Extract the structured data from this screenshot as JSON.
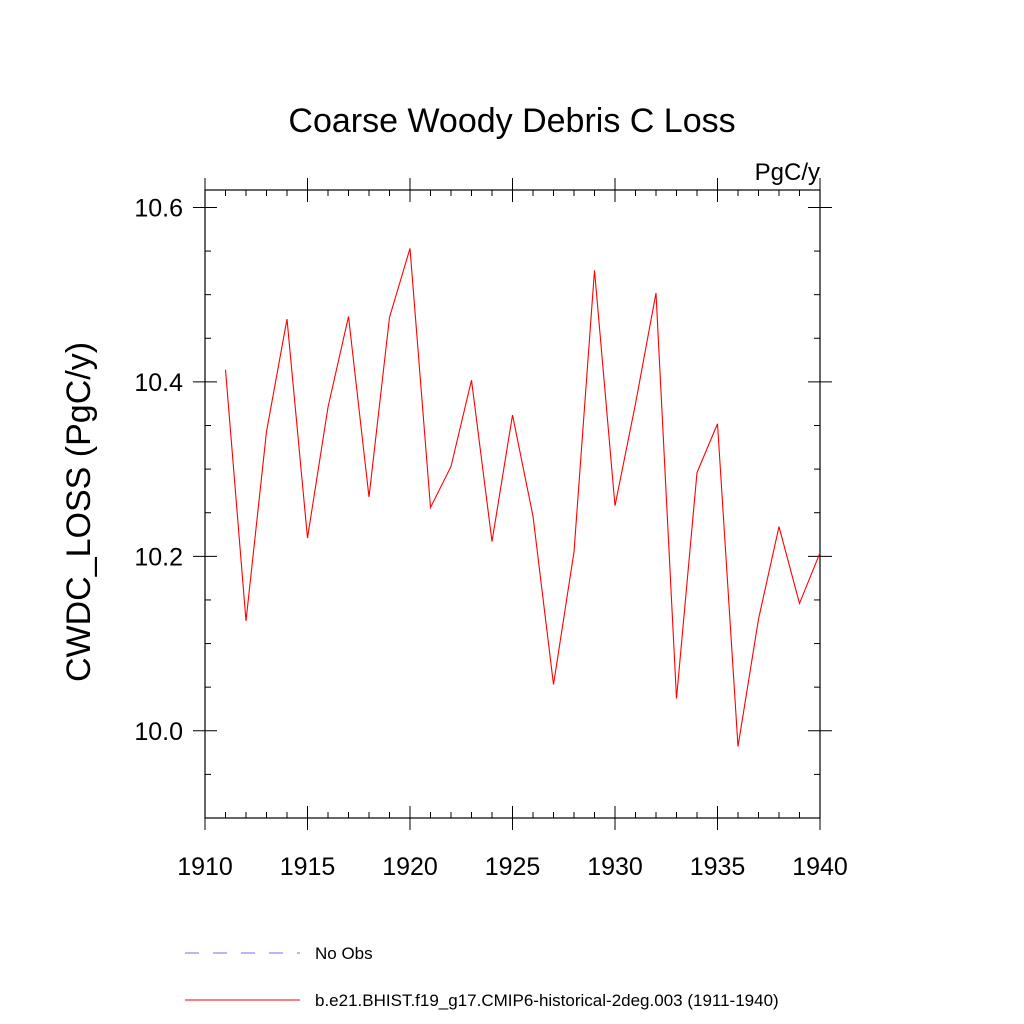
{
  "chart_data": {
    "type": "line",
    "title": "Coarse Woody Debris C Loss",
    "units_label": "PgC/y",
    "ylabel": "CWDC_LOSS  (PgC/y)",
    "xlabel": "",
    "xlim": [
      1910,
      1940
    ],
    "ylim": [
      9.9,
      10.62
    ],
    "x_ticks": [
      1910,
      1915,
      1920,
      1925,
      1930,
      1935,
      1940
    ],
    "x_tick_labels": [
      "1910",
      "1915",
      "1920",
      "1925",
      "1930",
      "1935",
      "1940"
    ],
    "y_ticks": [
      10.0,
      10.2,
      10.4,
      10.6
    ],
    "y_tick_labels": [
      "10.0",
      "10.2",
      "10.4",
      "10.6"
    ],
    "y_minor_step": 0.05,
    "x_minor_step": 1,
    "grid": false,
    "legend_position": "bottom-left",
    "series": [
      {
        "name": "b.e21.BHIST.f19_g17.CMIP6-historical-2deg.003 (1911-1940)",
        "color": "#ff0000",
        "x": [
          1911,
          1912,
          1913,
          1914,
          1915,
          1916,
          1917,
          1918,
          1919,
          1920,
          1921,
          1922,
          1923,
          1924,
          1925,
          1926,
          1927,
          1928,
          1929,
          1930,
          1931,
          1932,
          1933,
          1934,
          1935,
          1936,
          1937,
          1938,
          1939,
          1940
        ],
        "values": [
          10.414,
          10.126,
          10.343,
          10.472,
          10.221,
          10.371,
          10.475,
          10.268,
          10.474,
          10.553,
          10.256,
          10.303,
          10.402,
          10.217,
          10.362,
          10.246,
          10.053,
          10.205,
          10.528,
          10.258,
          10.375,
          10.502,
          10.037,
          10.296,
          10.352,
          9.982,
          10.128,
          10.234,
          10.146,
          10.204
        ]
      }
    ],
    "legend": [
      {
        "label": "No Obs",
        "color": "#7b68ee",
        "style": "dashed"
      },
      {
        "label": "b.e21.BHIST.f19_g17.CMIP6-historical-2deg.003 (1911-1940)",
        "color": "#ff0000",
        "style": "solid"
      }
    ]
  }
}
